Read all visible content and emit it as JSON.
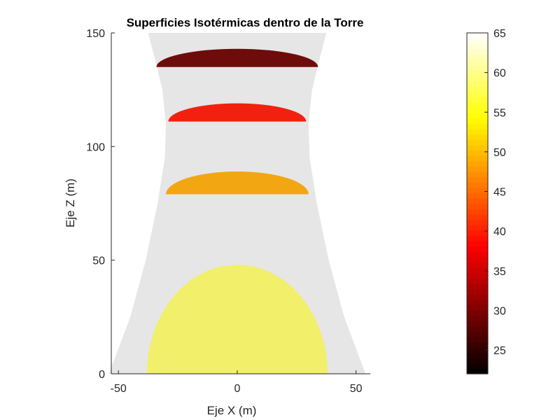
{
  "chart_data": {
    "type": "area",
    "title": "Superficies Isotérmicas dentro de la Torre",
    "xlabel": "Eje X (m)",
    "ylabel": "Eje Z (m)",
    "xlim": [
      -53,
      56
    ],
    "ylim": [
      0,
      150
    ],
    "xticks": [
      -50,
      0,
      50
    ],
    "yticks": [
      0,
      50,
      100,
      150
    ],
    "grid": false,
    "tower_color": "#e6e6e6",
    "tower_profile": [
      {
        "z": 0,
        "r": 54
      },
      {
        "z": 25,
        "r": 45
      },
      {
        "z": 50,
        "r": 38.5
      },
      {
        "z": 75,
        "r": 33.5
      },
      {
        "z": 95,
        "r": 30.5
      },
      {
        "z": 110,
        "r": 30
      },
      {
        "z": 125,
        "r": 31.5
      },
      {
        "z": 140,
        "r": 35
      },
      {
        "z": 150,
        "r": 37.5
      }
    ],
    "isosurfaces": [
      {
        "temperature": 55,
        "z_base": 0,
        "z_top": 48,
        "half_width": 38,
        "color": "#f2ef6a"
      },
      {
        "temperature": 45,
        "z_base": 79,
        "z_top": 89,
        "half_width": 30,
        "color": "#f2a611"
      },
      {
        "temperature": 35,
        "z_base": 111,
        "z_top": 119,
        "half_width": 29,
        "color": "#f2210f"
      },
      {
        "temperature": 27,
        "z_base": 135,
        "z_top": 143,
        "half_width": 34,
        "color": "#6e0c0c"
      }
    ],
    "colorbar": {
      "min": 22,
      "max": 65,
      "ticks": [
        25,
        30,
        35,
        40,
        45,
        50,
        55,
        60,
        65
      ],
      "colormap": "hot",
      "levels": 64
    }
  }
}
